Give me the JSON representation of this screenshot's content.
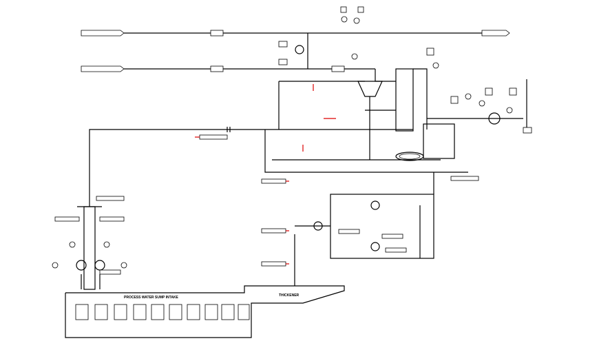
{
  "labels": {
    "sump": "PROCESS WATER SUMP INTAKE",
    "thickener": "THICKENER"
  }
}
